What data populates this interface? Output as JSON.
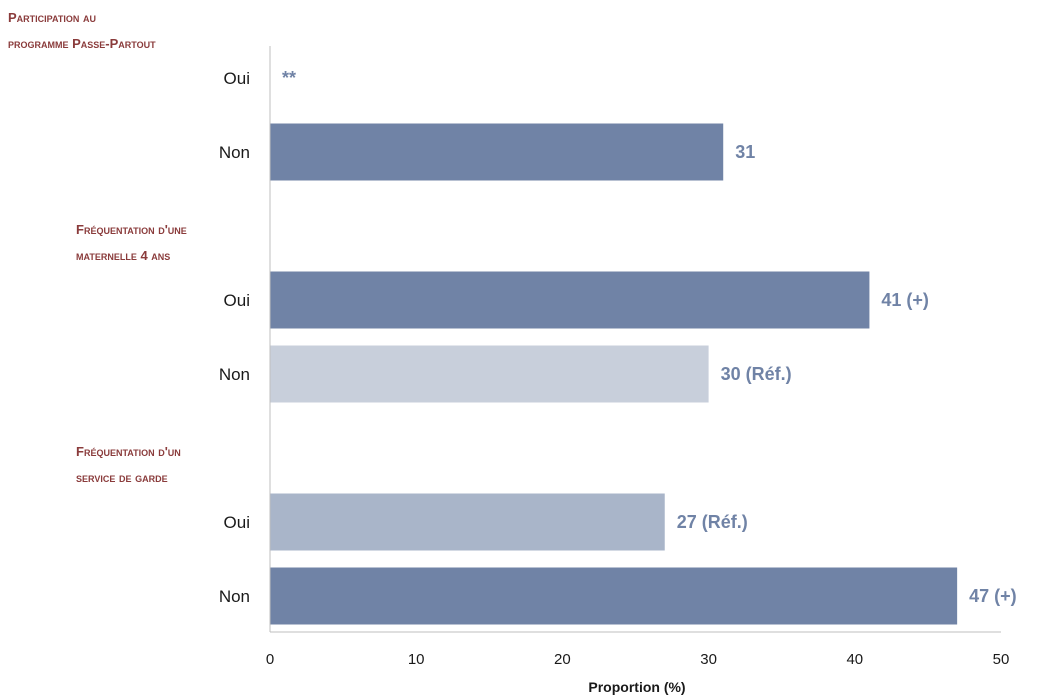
{
  "colors": {
    "group_title": "#8a3b3b",
    "value_label": "#7083a6",
    "axis": "#bfbfbf"
  },
  "chart_data": {
    "type": "bar",
    "orientation": "horizontal",
    "xlabel": "Proportion (%)",
    "xlim": [
      0,
      50
    ],
    "xticks": [
      "0",
      "10",
      "20",
      "30",
      "40",
      "50"
    ],
    "grid": false,
    "groups": [
      {
        "title_lines": [
          "Participation au",
          "programme Passe-Partout"
        ],
        "bars": [
          {
            "category": "Oui",
            "value": null,
            "label": "**",
            "color": "#7083a6"
          },
          {
            "category": "Non",
            "value": 31,
            "label": "31",
            "color": "#7083a6"
          }
        ]
      },
      {
        "title_lines": [
          "Fréquentation d'une",
          "maternelle 4 ans"
        ],
        "bars": [
          {
            "category": "Oui",
            "value": 41,
            "label": "41 (+)",
            "color": "#7083a6"
          },
          {
            "category": "Non",
            "value": 30,
            "label": "30 (Réf.)",
            "color": "#c8cfdb"
          }
        ]
      },
      {
        "title_lines": [
          "Fréquentation d'un",
          "service de garde"
        ],
        "bars": [
          {
            "category": "Oui",
            "value": 27,
            "label": "27 (Réf.)",
            "color": "#a9b5c9"
          },
          {
            "category": "Non",
            "value": 47,
            "label": "47 (+)",
            "color": "#7083a6"
          }
        ]
      }
    ]
  }
}
